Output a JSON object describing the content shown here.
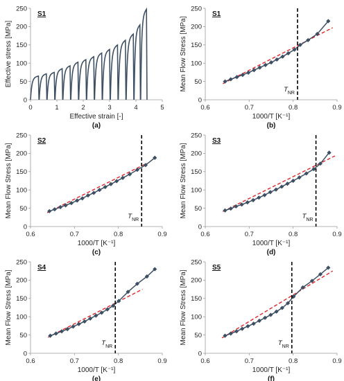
{
  "chart_data": [
    {
      "type": "line",
      "panel": "(a)",
      "sample": "S1",
      "xlabel": "Effective strain [-]",
      "ylabel": "Effective stress [MPa]",
      "xlim": [
        0,
        5
      ],
      "ylim": [
        0,
        250
      ],
      "xticks": [
        0,
        1,
        2,
        3,
        4,
        5
      ],
      "yticks": [
        0,
        50,
        100,
        150,
        200,
        250
      ],
      "grid": false,
      "color": "#3d4f63",
      "curves": [
        {
          "x0": 0.0,
          "x1": 0.3,
          "peak": 65
        },
        {
          "x0": 0.33,
          "x1": 0.6,
          "peak": 71
        },
        {
          "x0": 0.63,
          "x1": 0.9,
          "peak": 75
        },
        {
          "x0": 0.93,
          "x1": 1.2,
          "peak": 85
        },
        {
          "x0": 1.23,
          "x1": 1.5,
          "peak": 93
        },
        {
          "x0": 1.53,
          "x1": 1.8,
          "peak": 103
        },
        {
          "x0": 1.83,
          "x1": 2.1,
          "peak": 110
        },
        {
          "x0": 2.13,
          "x1": 2.4,
          "peak": 118
        },
        {
          "x0": 2.43,
          "x1": 2.7,
          "peak": 128
        },
        {
          "x0": 2.73,
          "x1": 3.0,
          "peak": 138
        },
        {
          "x0": 3.03,
          "x1": 3.3,
          "peak": 150
        },
        {
          "x0": 3.33,
          "x1": 3.6,
          "peak": 163
        },
        {
          "x0": 3.63,
          "x1": 3.9,
          "peak": 180
        },
        {
          "x0": 3.93,
          "x1": 4.15,
          "peak": 205
        },
        {
          "x0": 4.18,
          "x1": 4.4,
          "peak": 248
        }
      ]
    },
    {
      "type": "scatter",
      "panel": "(b)",
      "sample": "S1",
      "xlabel": "1000/T [K⁻¹]",
      "ylabel": "Mean Flow Stress [MPa]",
      "xlim": [
        0.6,
        0.9
      ],
      "ylim": [
        0,
        250
      ],
      "xticks": [
        0.6,
        0.7,
        0.8,
        0.9
      ],
      "yticks": [
        0,
        50,
        100,
        150,
        200,
        250
      ],
      "tnr_label": "T",
      "tnr_sub": "NR",
      "tnr_x": 0.81,
      "x": [
        0.645,
        0.658,
        0.672,
        0.685,
        0.698,
        0.711,
        0.724,
        0.737,
        0.75,
        0.763,
        0.776,
        0.789,
        0.803,
        0.816,
        0.834,
        0.855,
        0.88
      ],
      "y": [
        50,
        56,
        62,
        68,
        74,
        81,
        88,
        95,
        102,
        110,
        118,
        127,
        137,
        150,
        163,
        180,
        215
      ],
      "regression": {
        "x": [
          0.64,
          0.89
        ],
        "y": [
          44,
          197
        ]
      }
    },
    {
      "type": "scatter",
      "panel": "(c)",
      "sample": "S2",
      "xlabel": "1000/T [K⁻¹]",
      "ylabel": "Mean Flow Stress [MPa]",
      "xlim": [
        0.6,
        0.9
      ],
      "ylim": [
        0,
        250
      ],
      "xticks": [
        0.6,
        0.7,
        0.8,
        0.9
      ],
      "yticks": [
        0,
        50,
        100,
        150,
        200,
        250
      ],
      "tnr_label": "T",
      "tnr_sub": "NR",
      "tnr_x": 0.853,
      "x": [
        0.643,
        0.655,
        0.668,
        0.68,
        0.693,
        0.706,
        0.718,
        0.731,
        0.744,
        0.757,
        0.77,
        0.783,
        0.796,
        0.81,
        0.826,
        0.843,
        0.862,
        0.883
      ],
      "y": [
        42,
        47,
        53,
        58,
        64,
        71,
        77,
        85,
        92,
        100,
        108,
        116,
        124,
        133,
        143,
        155,
        168,
        188
      ],
      "regression": {
        "x": [
          0.638,
          0.865
        ],
        "y": [
          38,
          173
        ]
      }
    },
    {
      "type": "scatter",
      "panel": "(d)",
      "sample": "S3",
      "xlabel": "1000/T [K⁻¹]",
      "ylabel": "Mean Flow Stress [MPa]",
      "xlim": [
        0.6,
        0.9
      ],
      "ylim": [
        0,
        250
      ],
      "xticks": [
        0.6,
        0.7,
        0.8,
        0.9
      ],
      "yticks": [
        0,
        50,
        100,
        150,
        200,
        250
      ],
      "tnr_label": "T",
      "tnr_sub": "NR",
      "tnr_x": 0.852,
      "x": [
        0.645,
        0.658,
        0.67,
        0.683,
        0.696,
        0.709,
        0.722,
        0.735,
        0.748,
        0.761,
        0.774,
        0.787,
        0.8,
        0.814,
        0.83,
        0.847,
        0.862,
        0.882
      ],
      "y": [
        44,
        49,
        55,
        60,
        66,
        72,
        79,
        86,
        94,
        101,
        109,
        117,
        125,
        134,
        145,
        157,
        172,
        202
      ],
      "regression": {
        "x": [
          0.64,
          0.895
        ],
        "y": [
          41,
          193
        ]
      }
    },
    {
      "type": "scatter",
      "panel": "(e)",
      "sample": "S4",
      "xlabel": "1000/T [K⁻¹]",
      "ylabel": "Mean Flow Stress [MPa]",
      "xlim": [
        0.6,
        0.9
      ],
      "ylim": [
        0,
        250
      ],
      "xticks": [
        0.6,
        0.7,
        0.8,
        0.9
      ],
      "yticks": [
        0,
        50,
        100,
        150,
        200,
        250
      ],
      "tnr_label": "T",
      "tnr_sub": "NR",
      "tnr_x": 0.793,
      "x": [
        0.645,
        0.658,
        0.671,
        0.684,
        0.697,
        0.71,
        0.723,
        0.736,
        0.749,
        0.762,
        0.775,
        0.788,
        0.801,
        0.822,
        0.843,
        0.865,
        0.883
      ],
      "y": [
        48,
        54,
        60,
        66,
        73,
        80,
        87,
        95,
        103,
        111,
        120,
        130,
        143,
        168,
        190,
        210,
        230
      ],
      "regression": {
        "x": [
          0.64,
          0.855
        ],
        "y": [
          44,
          175
        ]
      }
    },
    {
      "type": "scatter",
      "panel": "(f)",
      "sample": "S5",
      "xlabel": "1000/T [K⁻¹]",
      "ylabel": "Mean Flow Stress [MPa]",
      "xlim": [
        0.6,
        0.9
      ],
      "ylim": [
        0,
        250
      ],
      "xticks": [
        0.6,
        0.7,
        0.8,
        0.9
      ],
      "yticks": [
        0,
        50,
        100,
        150,
        200,
        250
      ],
      "tnr_label": "T",
      "tnr_sub": "NR",
      "tnr_x": 0.797,
      "x": [
        0.645,
        0.658,
        0.671,
        0.684,
        0.697,
        0.71,
        0.723,
        0.736,
        0.749,
        0.762,
        0.775,
        0.788,
        0.801,
        0.822,
        0.843,
        0.862,
        0.88
      ],
      "y": [
        48,
        54,
        60,
        67,
        74,
        81,
        89,
        97,
        105,
        114,
        124,
        137,
        155,
        180,
        198,
        216,
        234
      ],
      "regression": {
        "x": [
          0.638,
          0.89
        ],
        "y": [
          42,
          225
        ]
      }
    }
  ],
  "style": {
    "series_color": "#3d4f63",
    "regression_color": "#e0262a",
    "tnr_line_color": "#000000",
    "axis_color": "#9a9a9a"
  }
}
